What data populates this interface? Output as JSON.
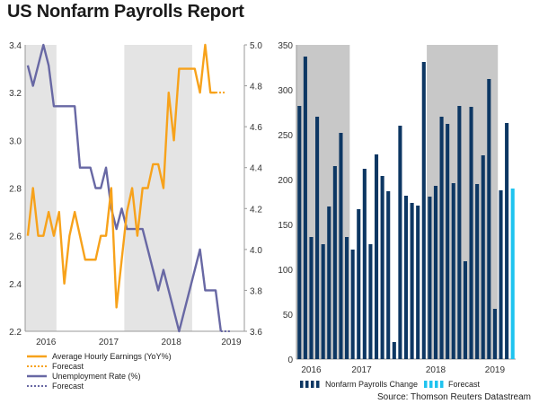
{
  "title": "US Nonfarm Payrolls Report",
  "source": "Source: Thomson Reuters Datastream",
  "colors": {
    "earnings": "#f7a21b",
    "unemployment": "#6868a4",
    "payrolls": "#0d3763",
    "forecast_bar": "#1fc3ef",
    "shade": "#e4e4e4",
    "shade_dark": "#c8c8c8"
  },
  "chart_data": [
    {
      "type": "line",
      "xticks": [
        "2016",
        "2017",
        "2018",
        "2019"
      ],
      "y_left": {
        "lim": [
          2.2,
          3.4
        ],
        "ticks": [
          "2.2",
          "2.4",
          "2.6",
          "2.8",
          "3.0",
          "3.2",
          "3.4"
        ]
      },
      "y_right": {
        "lim": [
          3.6,
          5.0
        ],
        "ticks": [
          "3.6",
          "3.8",
          "4.0",
          "4.2",
          "4.4",
          "4.6",
          "4.8",
          "5.0"
        ]
      },
      "shaded_month_ranges": [
        [
          0,
          6
        ],
        [
          19,
          32
        ]
      ],
      "months": 42,
      "series": [
        {
          "name": "Average Hourly Earnings (YoY%)",
          "axis": "left",
          "values": [
            2.6,
            2.8,
            2.6,
            2.6,
            2.7,
            2.6,
            2.7,
            2.4,
            2.6,
            2.7,
            2.6,
            2.5,
            2.5,
            2.5,
            2.6,
            2.6,
            2.8,
            2.3,
            2.5,
            2.7,
            2.8,
            2.6,
            2.8,
            2.8,
            2.9,
            2.9,
            2.8,
            3.2,
            3.0,
            3.3,
            3.3,
            3.3,
            3.3,
            3.2,
            3.4,
            3.2,
            3.2
          ],
          "forecast": [
            3.2,
            3.2
          ]
        },
        {
          "name": "Unemployment Rate (%)",
          "axis": "right",
          "values": [
            4.9,
            4.8,
            4.9,
            5.0,
            4.9,
            4.7,
            4.7,
            4.7,
            4.7,
            4.7,
            4.4,
            4.4,
            4.4,
            4.3,
            4.3,
            4.4,
            4.2,
            4.1,
            4.2,
            4.1,
            4.1,
            4.1,
            4.1,
            4.0,
            3.9,
            3.8,
            3.9,
            3.8,
            3.7,
            3.6,
            3.7,
            3.8,
            3.9,
            4.0,
            3.8,
            3.8,
            3.8,
            3.6
          ],
          "forecast": [
            3.6,
            3.6
          ]
        }
      ]
    },
    {
      "type": "bar",
      "xticks": [
        "2016",
        "2017",
        "2018",
        "2019"
      ],
      "ylim": [
        0,
        350
      ],
      "yticks": [
        "0",
        "50",
        "100",
        "150",
        "200",
        "250",
        "300",
        "350"
      ],
      "shaded_bar_ranges": [
        [
          0,
          9
        ],
        [
          22,
          34
        ]
      ],
      "series": [
        {
          "name": "Nonfarm Payrolls Change",
          "values": [
            282,
            337,
            136,
            270,
            128,
            170,
            215,
            252,
            136,
            122,
            167,
            212,
            128,
            228,
            204,
            187,
            19,
            260,
            182,
            174,
            171,
            331,
            181,
            193,
            270,
            262,
            196,
            282,
            109,
            281,
            195,
            227,
            312,
            56,
            188,
            263
          ]
        },
        {
          "name": "Forecast",
          "values": [
            190
          ]
        }
      ]
    }
  ]
}
